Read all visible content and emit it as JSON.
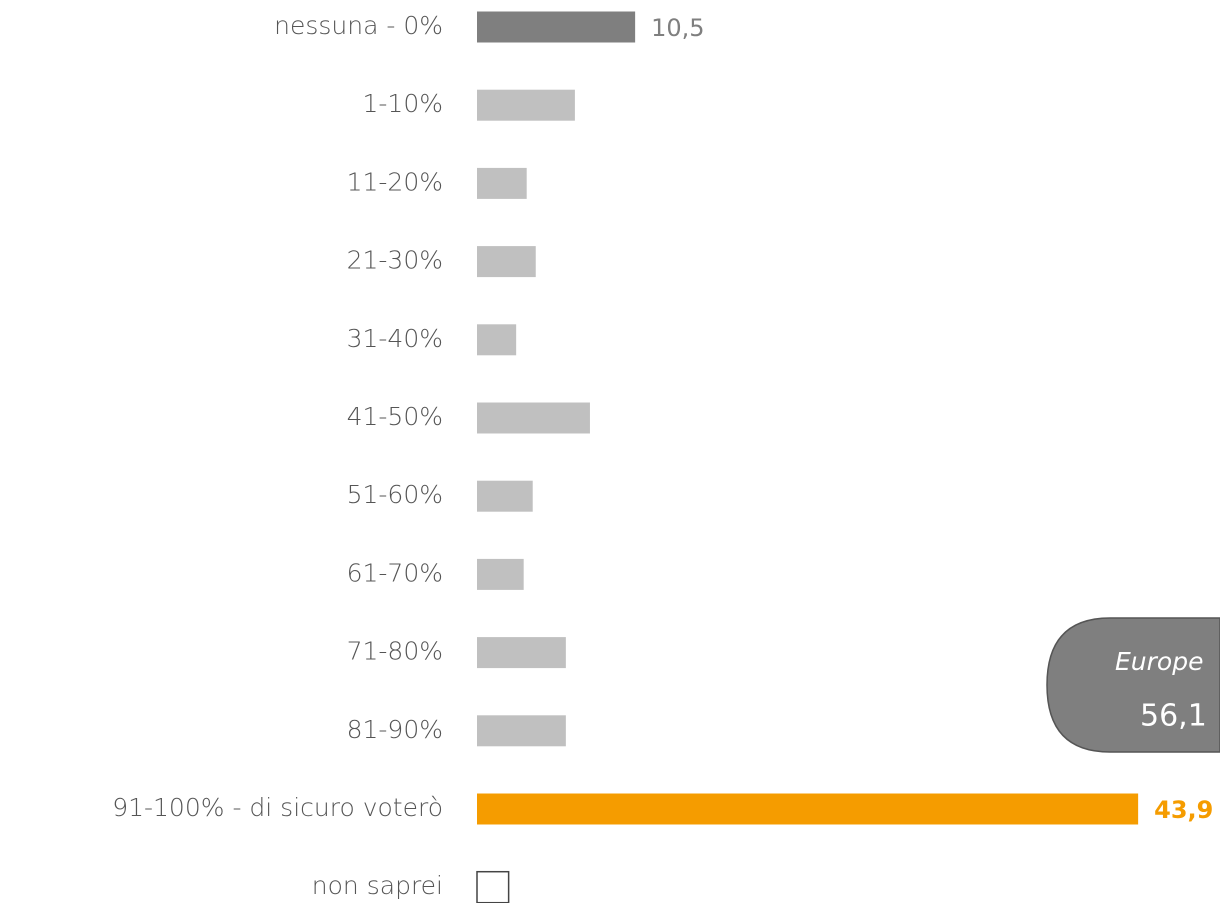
{
  "chart_data": {
    "type": "bar",
    "orientation": "horizontal",
    "categories": [
      "nessuna - 0%",
      "1-10%",
      "11-20%",
      "21-30%",
      "31-40%",
      "41-50%",
      "51-60%",
      "61-70%",
      "71-80%",
      "81-90%",
      "91-100% - di sicuro voterò",
      "non saprei"
    ],
    "values": [
      10.5,
      6.5,
      3.3,
      3.9,
      2.6,
      7.5,
      3.7,
      3.1,
      5.9,
      5.9,
      43.9,
      2.1
    ],
    "value_labels": [
      "10,5",
      null,
      null,
      null,
      null,
      null,
      null,
      null,
      null,
      null,
      "43,9",
      null
    ],
    "colors": [
      "#7f7f7f",
      "#c0c0c0",
      "#c0c0c0",
      "#c0c0c0",
      "#c0c0c0",
      "#c0c0c0",
      "#c0c0c0",
      "#c0c0c0",
      "#c0c0c0",
      "#c0c0c0",
      "#f59c00",
      "#ffffff"
    ],
    "xlim": [
      0,
      50
    ],
    "annotations": [
      "Europe",
      "56,1"
    ]
  }
}
